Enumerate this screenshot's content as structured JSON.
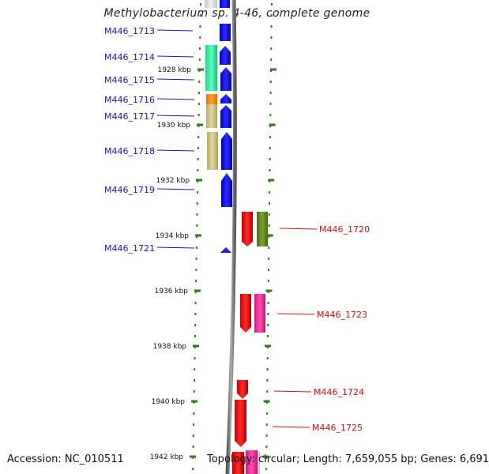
{
  "title": "Methylobacterium sp. 4-46, complete genome",
  "footer": {
    "accession": "Accession: NC_010511",
    "summary": "Topology: circular; Length: 7,659,055 bp; Genes: 6,691"
  },
  "colors": {
    "forward_label": "#1414c8",
    "reverse_label": "#d01010",
    "tick": "#2e7d1a",
    "backbone": "#808080"
  },
  "ticks": [
    {
      "label": "1928 kbp"
    },
    {
      "label": "1930 kbp"
    },
    {
      "label": "1932 kbp"
    },
    {
      "label": "1934 kbp"
    },
    {
      "label": "1936 kbp"
    },
    {
      "label": "1938 kbp"
    },
    {
      "label": "1940 kbp"
    },
    {
      "label": "1942 kbp"
    }
  ],
  "genes": [
    {
      "label": "M446_1713",
      "strand": "+"
    },
    {
      "label": "M446_1714",
      "strand": "+"
    },
    {
      "label": "M446_1715",
      "strand": "+"
    },
    {
      "label": "M446_1716",
      "strand": "+"
    },
    {
      "label": "M446_1717",
      "strand": "+"
    },
    {
      "label": "M446_1718",
      "strand": "+"
    },
    {
      "label": "M446_1719",
      "strand": "+"
    },
    {
      "label": "M446_1721",
      "strand": "+"
    },
    {
      "label": "M446_1720",
      "strand": "-"
    },
    {
      "label": "M446_1723",
      "strand": "-"
    },
    {
      "label": "M446_1724",
      "strand": "-"
    },
    {
      "label": "M446_1725",
      "strand": "-"
    }
  ]
}
